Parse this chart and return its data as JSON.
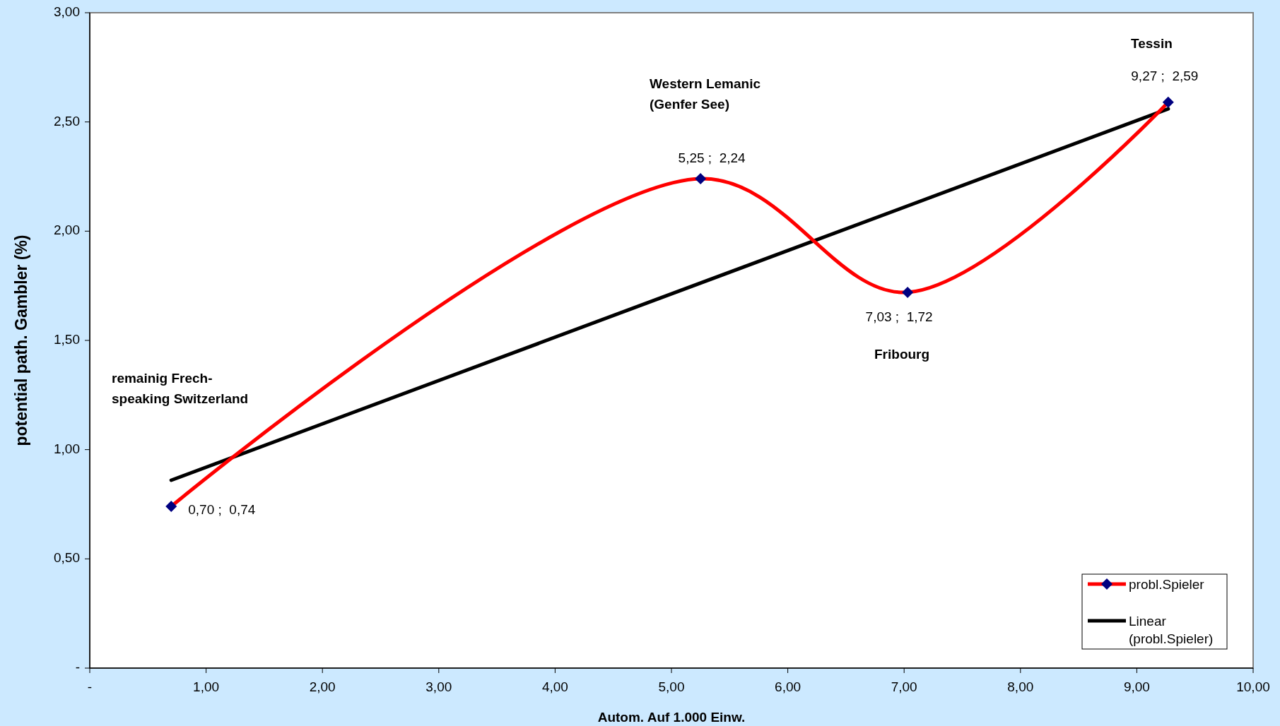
{
  "chart_data": {
    "type": "line",
    "xlabel": "Autom. Auf 1.000 Einw.",
    "ylabel": "potential path. Gambler (%)",
    "xlim": [
      0,
      10
    ],
    "ylim": [
      0,
      3
    ],
    "xticks": [
      {
        "value": 0,
        "label": "-"
      },
      {
        "value": 1,
        "label": "1,00"
      },
      {
        "value": 2,
        "label": "2,00"
      },
      {
        "value": 3,
        "label": "3,00"
      },
      {
        "value": 4,
        "label": "4,00"
      },
      {
        "value": 5,
        "label": "5,00"
      },
      {
        "value": 6,
        "label": "6,00"
      },
      {
        "value": 7,
        "label": "7,00"
      },
      {
        "value": 8,
        "label": "8,00"
      },
      {
        "value": 9,
        "label": "9,00"
      },
      {
        "value": 10,
        "label": "10,00"
      }
    ],
    "yticks": [
      {
        "value": 0,
        "label": "-"
      },
      {
        "value": 0.5,
        "label": "0,50"
      },
      {
        "value": 1,
        "label": "1,00"
      },
      {
        "value": 1.5,
        "label": "1,50"
      },
      {
        "value": 2,
        "label": "2,00"
      },
      {
        "value": 2.5,
        "label": "2,50"
      },
      {
        "value": 3,
        "label": "3,00"
      }
    ],
    "grid": false,
    "legend": "bottom right",
    "series": [
      {
        "name": "probl.Spieler",
        "color": "#ff0000",
        "colors": [
          "#000080",
          "#000080",
          "#000080",
          "#000080"
        ],
        "marker": "diamond",
        "line_style": "solid",
        "x": [
          0.7,
          5.25,
          7.03,
          9.27
        ],
        "values": [
          0.74,
          2.24,
          1.72,
          2.59
        ],
        "value_labels": [
          "0,70 ;  0,74",
          "5,25 ;  2,24",
          "7,03 ;  1,72",
          "9,27 ;  2,59"
        ]
      },
      {
        "name": "Linear (probl.Spieler)",
        "color": "#000000",
        "marker": "none",
        "line_style": "solid",
        "x": [
          0.7,
          9.27
        ],
        "values": [
          0.86,
          2.56
        ]
      }
    ],
    "annotations": [
      "remainig Frech-\nspeaking Switzerland",
      "Western Lemanic\n(Genfer See)",
      "Fribourg",
      "Tessin"
    ]
  }
}
